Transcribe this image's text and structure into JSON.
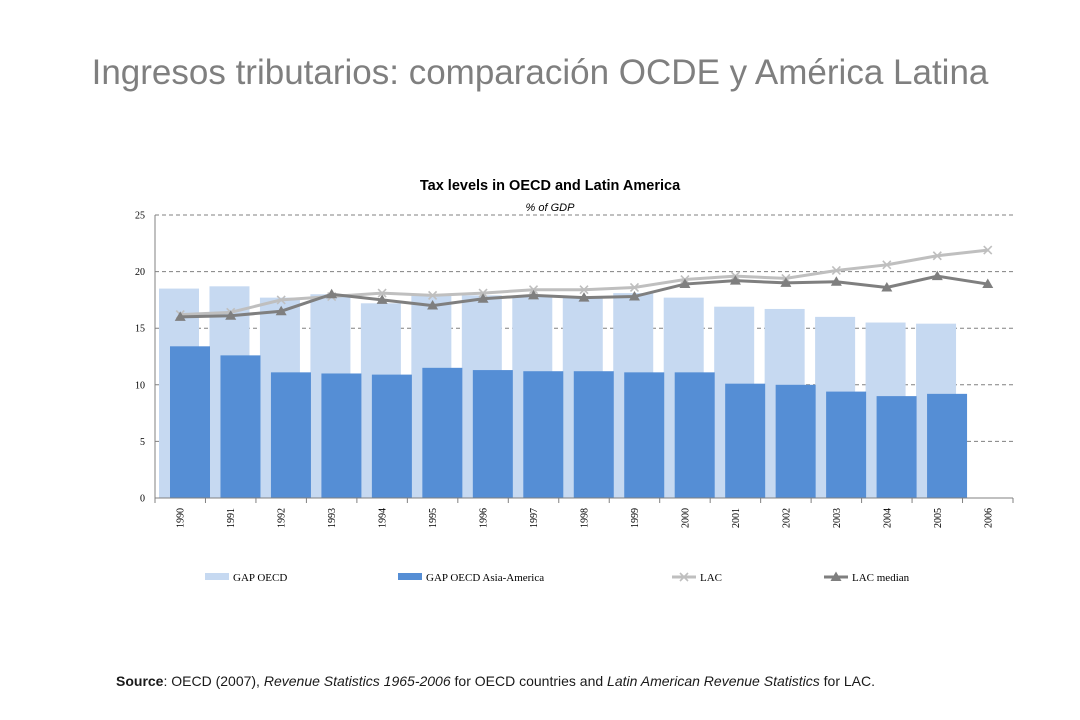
{
  "slide": {
    "title": "Ingresos tributarios: comparación OCDE y América Latina"
  },
  "source": {
    "label": "Source",
    "t1": ": OECD (2007), ",
    "t2": "Revenue Statistics 1965-2006",
    "t3": " for OECD countries and ",
    "t4": "Latin American Revenue Statistics",
    "t5": " for LAC."
  },
  "chart_data": {
    "type": "bar",
    "title": "Tax levels in OECD and Latin America",
    "subtitle": "% of GDP",
    "categories": [
      "1990",
      "1991",
      "1992",
      "1993",
      "1994",
      "1995",
      "1996",
      "1997",
      "1998",
      "1999",
      "2000",
      "2001",
      "2002",
      "2003",
      "2004",
      "2005",
      "2006"
    ],
    "ylim": [
      0,
      25
    ],
    "yticks": [
      0,
      5,
      10,
      15,
      20,
      25
    ],
    "grid": true,
    "legend_position": "bottom",
    "series": [
      {
        "name": "GAP OECD",
        "kind": "bar",
        "color": "#c6d9f1",
        "values": [
          18.5,
          18.7,
          17.7,
          18.0,
          17.2,
          18.0,
          17.9,
          17.8,
          17.8,
          18.1,
          17.7,
          16.9,
          16.7,
          16.0,
          15.5,
          15.4,
          null
        ]
      },
      {
        "name": "GAP OECD Asia-America",
        "kind": "bar",
        "color": "#558ed5",
        "values": [
          13.4,
          12.6,
          11.1,
          11.0,
          10.9,
          11.5,
          11.3,
          11.2,
          11.2,
          11.1,
          11.1,
          10.1,
          10.0,
          9.4,
          9.0,
          9.2,
          null
        ]
      },
      {
        "name": "LAC",
        "kind": "line",
        "color": "#bfbfbf",
        "marker": "x",
        "values": [
          16.2,
          16.4,
          17.5,
          17.8,
          18.1,
          17.9,
          18.1,
          18.4,
          18.4,
          18.6,
          19.3,
          19.6,
          19.4,
          20.1,
          20.6,
          21.4,
          21.9
        ]
      },
      {
        "name": "LAC median",
        "kind": "line",
        "color": "#7f7f7f",
        "marker": "triangle",
        "values": [
          16.0,
          16.1,
          16.5,
          18.0,
          17.5,
          17.0,
          17.6,
          17.9,
          17.7,
          17.8,
          18.9,
          19.2,
          19.0,
          19.1,
          18.6,
          19.6,
          18.9
        ]
      }
    ]
  }
}
